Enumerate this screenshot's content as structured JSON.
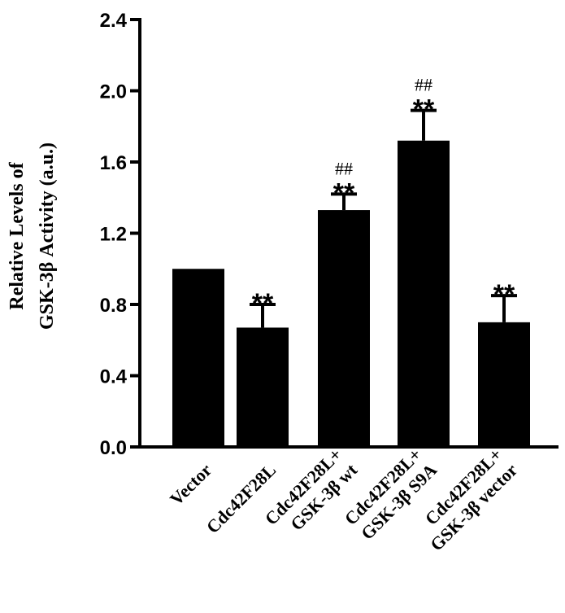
{
  "chart_data": {
    "type": "bar",
    "ylabel_lines": [
      "Relative Levels of",
      "GSK-3β Activity (a.u.)"
    ],
    "ylim": [
      0,
      2.4
    ],
    "yticks": [
      "0.0",
      "0.4",
      "0.8",
      "1.2",
      "1.6",
      "2.0",
      "2.4"
    ],
    "categories": [
      [
        "Vector"
      ],
      [
        "Cdc42F28L"
      ],
      [
        "Cdc42F28L+",
        "GSK-3β wt"
      ],
      [
        "Cdc42F28L+",
        "GSK-3β S9A"
      ],
      [
        "Cdc42F28L+",
        "GSK-3β vector"
      ]
    ],
    "values": [
      1.0,
      0.67,
      1.33,
      1.72,
      0.7
    ],
    "errors": [
      0.0,
      0.13,
      0.09,
      0.17,
      0.15
    ],
    "significance": [
      {
        "stars": "",
        "hash": ""
      },
      {
        "stars": "**",
        "hash": ""
      },
      {
        "stars": "**",
        "hash": "##"
      },
      {
        "stars": "**",
        "hash": "##"
      },
      {
        "stars": "**",
        "hash": ""
      }
    ],
    "bar_color": "#000000"
  }
}
